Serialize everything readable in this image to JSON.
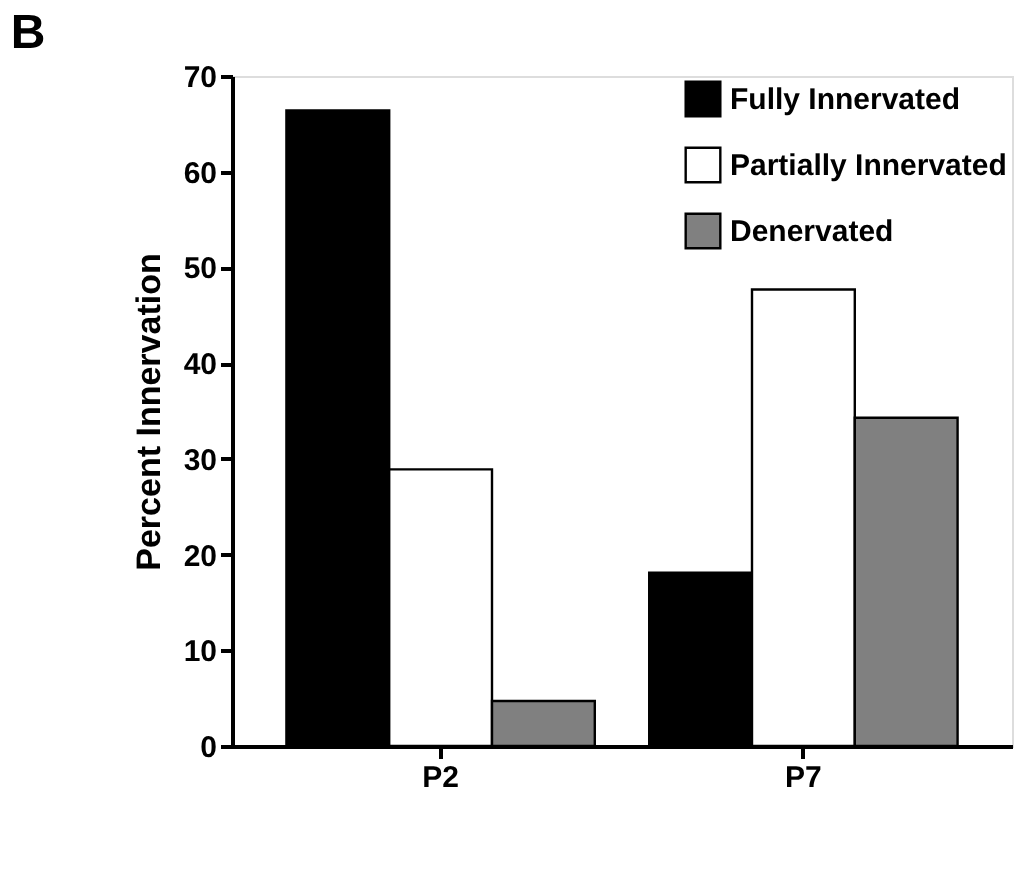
{
  "chart_data": {
    "type": "bar",
    "title": "B",
    "ylabel": "Percent Innervation",
    "categories": [
      "P2",
      "P7"
    ],
    "series": [
      {
        "name": "Fully Innervated",
        "color": "#000000",
        "values": [
          66.4,
          18.1
        ]
      },
      {
        "name": "Partially Innervated",
        "color": "#ffffff",
        "values": [
          28.9,
          47.7
        ]
      },
      {
        "name": "Denervated",
        "color": "#808080",
        "values": [
          4.7,
          34.3
        ]
      }
    ],
    "ylim": [
      0,
      70
    ],
    "yticks": [
      0,
      10,
      20,
      30,
      40,
      50,
      60,
      70
    ],
    "grid": false,
    "legend": "top right"
  }
}
